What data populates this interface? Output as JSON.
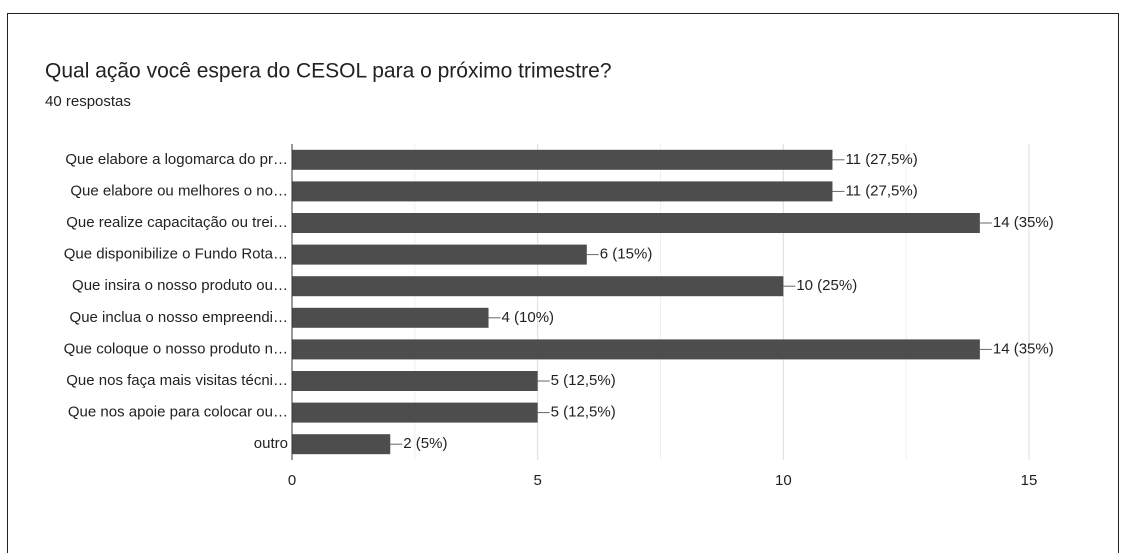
{
  "chart_data": {
    "type": "hbar",
    "title": "Qual ação você espera do CESOL para o próximo trimestre?",
    "subtitle": "40 respostas",
    "categories": [
      "Que elabore a logomarca do pr…",
      "Que elabore ou melhores o no…",
      "Que realize capacitação ou trei…",
      "Que disponibilize o Fundo Rota…",
      "Que insira o nosso produto ou…",
      "Que inclua o nosso empreendi…",
      "Que coloque o nosso produto n…",
      "Que nos faça mais visitas técni…",
      "Que nos apoie para colocar ou…",
      "outro"
    ],
    "values": [
      11,
      11,
      14,
      6,
      10,
      4,
      14,
      5,
      5,
      2
    ],
    "value_labels": [
      "11 (27,5%)",
      "11 (27,5%)",
      "14 (35%)",
      "6 (15%)",
      "10 (25%)",
      "4 (10%)",
      "14 (35%)",
      "5 (12,5%)",
      "5 (12,5%)",
      "2 (5%)"
    ],
    "color": "#4d4d4d",
    "xlim": [
      0,
      15
    ],
    "xticks": [
      0,
      5,
      10,
      15
    ],
    "xminorticks": [
      2.5,
      7.5,
      12.5
    ],
    "grid": true
  }
}
